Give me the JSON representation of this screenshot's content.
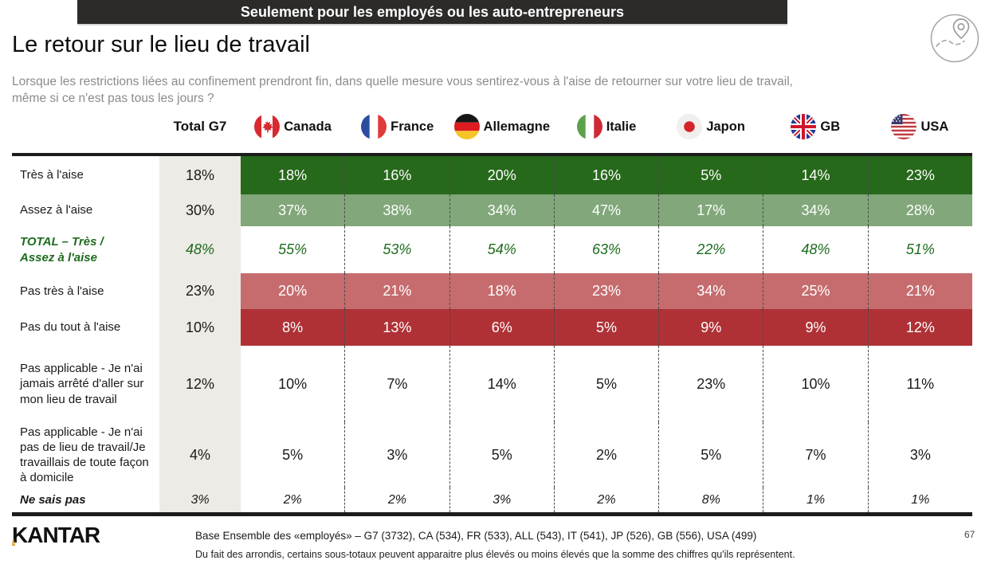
{
  "banner": {
    "text": "Seulement pour les employés ou les auto-entrepreneurs"
  },
  "header": {
    "title": "Le retour sur le lieu de travail",
    "subtitle": "Lorsque les restrictions liées au confinement prendront fin, dans quelle mesure vous sentirez-vous à l'aise de retourner sur votre lieu de travail,\nmême si ce n'est pas tous les jours ?"
  },
  "icons": {
    "top_right": "route-map-pin-icon"
  },
  "table": {
    "columns": [
      {
        "label": "Total G7",
        "flag": null
      },
      {
        "label": "Canada",
        "flag": "canada"
      },
      {
        "label": "France",
        "flag": "france"
      },
      {
        "label": "Allemagne",
        "flag": "germany"
      },
      {
        "label": "Italie",
        "flag": "italy"
      },
      {
        "label": "Japon",
        "flag": "japan"
      },
      {
        "label": "GB",
        "flag": "uk"
      },
      {
        "label": "USA",
        "flag": "usa"
      }
    ],
    "rows": [
      {
        "label": "Très à l'aise",
        "style": "dark-green",
        "values": [
          "18%",
          "18%",
          "16%",
          "20%",
          "16%",
          "5%",
          "14%",
          "23%"
        ]
      },
      {
        "label": "Assez à l'aise",
        "style": "mid-green",
        "values": [
          "30%",
          "37%",
          "38%",
          "34%",
          "47%",
          "17%",
          "34%",
          "28%"
        ]
      },
      {
        "label": "TOTAL – Très /\nAssez à l'aise",
        "style": "total-green",
        "values": [
          "48%",
          "55%",
          "53%",
          "54%",
          "63%",
          "22%",
          "48%",
          "51%"
        ]
      },
      {
        "label": "Pas très à l'aise",
        "style": "light-red",
        "values": [
          "23%",
          "20%",
          "21%",
          "18%",
          "23%",
          "34%",
          "25%",
          "21%"
        ]
      },
      {
        "label": "Pas du tout à l'aise",
        "style": "dark-red",
        "values": [
          "10%",
          "8%",
          "13%",
          "6%",
          "5%",
          "9%",
          "9%",
          "12%"
        ]
      },
      {
        "label": "Pas applicable - Je n'ai jamais arrêté d'aller sur mon lieu de travail",
        "style": "plain",
        "values": [
          "12%",
          "10%",
          "7%",
          "14%",
          "5%",
          "23%",
          "10%",
          "11%"
        ]
      },
      {
        "label": "Pas applicable - Je n'ai pas de lieu de travail/Je travaillais de toute façon à domicile",
        "style": "plain",
        "values": [
          "4%",
          "5%",
          "3%",
          "5%",
          "2%",
          "5%",
          "7%",
          "3%"
        ]
      },
      {
        "label": "Ne sais pas",
        "style": "nsp",
        "values": [
          "3%",
          "2%",
          "2%",
          "3%",
          "2%",
          "8%",
          "1%",
          "1%"
        ]
      }
    ]
  },
  "footer": {
    "logo": "KANTAR",
    "base": "Base Ensemble des «employés» – G7 (3732), CA (534), FR (533), ALL (543), IT (541), JP (526), GB (556), USA (499)",
    "note": "Du fait des arrondis, certains sous-totaux peuvent apparaitre plus élevés ou moins élevés que la somme des chiffres qu'ils représentent.",
    "page": "67"
  },
  "colors": {
    "banner_bg": "#2d2b29",
    "dark_green": "#27691b",
    "mid_green": "#81a77a",
    "total_green_text": "#1e6b1e",
    "light_red": "#c66c6e",
    "dark_red": "#af3136",
    "g7_column_bg": "#edebe5",
    "subtitle_gray": "#8b8b8b"
  }
}
